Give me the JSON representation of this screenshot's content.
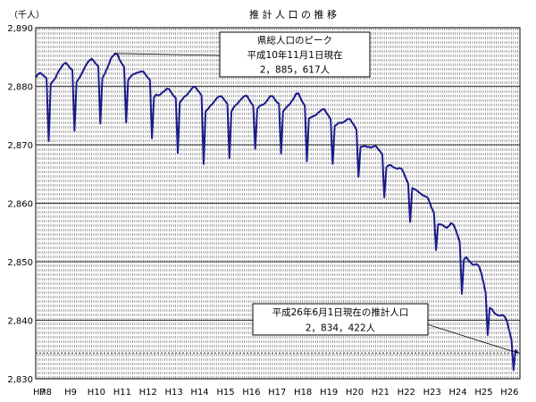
{
  "chart_data": {
    "type": "line",
    "title": "推 計 人 口 の 推 移",
    "unit_label": "（千人）",
    "xlabel": "",
    "ylabel": "",
    "ylim": [
      2830,
      2890
    ],
    "yticks": [
      2830,
      2840,
      2850,
      2860,
      2870,
      2880,
      2890
    ],
    "ytick_labels": [
      "2,830",
      "2,840",
      "2,850",
      "2,860",
      "2,870",
      "2,880",
      "2,890"
    ],
    "x_start_year": 7.75,
    "x_end_year": 26.5,
    "x_categories": [
      "H7",
      "H8",
      "H9",
      "H10",
      "H11",
      "H12",
      "H13",
      "H14",
      "H15",
      "H16",
      "H17",
      "H18",
      "H19",
      "H20",
      "H21",
      "H22",
      "H23",
      "H24",
      "H25",
      "H26"
    ],
    "grid": {
      "horizontal": true,
      "vertical_monthly": true,
      "vertical_style": "dashed"
    },
    "line_color": "#1a1a8c",
    "series": [
      {
        "values": [
          [
            7.75,
            2881.5
          ],
          [
            7.83,
            2882.0
          ],
          [
            7.92,
            2882.3
          ],
          [
            8.0,
            2882.0
          ],
          [
            8.08,
            2881.7
          ],
          [
            8.17,
            2881.4
          ],
          [
            8.25,
            2870.6
          ],
          [
            8.33,
            2880.4
          ],
          [
            8.42,
            2880.9
          ],
          [
            8.5,
            2881.3
          ],
          [
            8.58,
            2882.1
          ],
          [
            8.67,
            2882.8
          ],
          [
            8.75,
            2883.3
          ],
          [
            8.83,
            2883.8
          ],
          [
            8.92,
            2884.0
          ],
          [
            9.0,
            2883.6
          ],
          [
            9.08,
            2883.1
          ],
          [
            9.17,
            2882.8
          ],
          [
            9.25,
            2872.4
          ],
          [
            9.33,
            2880.7
          ],
          [
            9.42,
            2881.3
          ],
          [
            9.5,
            2881.9
          ],
          [
            9.58,
            2882.6
          ],
          [
            9.67,
            2883.4
          ],
          [
            9.75,
            2884.0
          ],
          [
            9.83,
            2884.4
          ],
          [
            9.92,
            2884.7
          ],
          [
            10.0,
            2884.3
          ],
          [
            10.08,
            2883.8
          ],
          [
            10.17,
            2883.4
          ],
          [
            10.25,
            2873.6
          ],
          [
            10.33,
            2881.4
          ],
          [
            10.42,
            2882.1
          ],
          [
            10.5,
            2882.9
          ],
          [
            10.58,
            2883.7
          ],
          [
            10.67,
            2884.8
          ],
          [
            10.75,
            2885.2
          ],
          [
            10.83,
            2885.6
          ],
          [
            10.92,
            2885.4
          ],
          [
            11.0,
            2884.5
          ],
          [
            11.08,
            2883.9
          ],
          [
            11.17,
            2883.3
          ],
          [
            11.25,
            2873.8
          ],
          [
            11.33,
            2881.1
          ],
          [
            11.42,
            2881.6
          ],
          [
            11.5,
            2882.0
          ],
          [
            11.58,
            2882.1
          ],
          [
            11.67,
            2882.3
          ],
          [
            11.75,
            2882.4
          ],
          [
            11.83,
            2882.5
          ],
          [
            11.92,
            2882.5
          ],
          [
            12.0,
            2882.0
          ],
          [
            12.08,
            2881.5
          ],
          [
            12.17,
            2881.1
          ],
          [
            12.25,
            2871.1
          ],
          [
            12.33,
            2878.1
          ],
          [
            12.42,
            2878.6
          ],
          [
            12.5,
            2878.4
          ],
          [
            12.58,
            2878.6
          ],
          [
            12.67,
            2879.0
          ],
          [
            12.75,
            2879.2
          ],
          [
            12.83,
            2879.6
          ],
          [
            12.92,
            2879.5
          ],
          [
            13.0,
            2878.9
          ],
          [
            13.08,
            2878.4
          ],
          [
            13.17,
            2878.0
          ],
          [
            13.25,
            2868.6
          ],
          [
            13.33,
            2877.2
          ],
          [
            13.42,
            2877.7
          ],
          [
            13.5,
            2878.2
          ],
          [
            13.58,
            2878.4
          ],
          [
            13.67,
            2878.9
          ],
          [
            13.75,
            2879.3
          ],
          [
            13.83,
            2879.8
          ],
          [
            13.92,
            2879.9
          ],
          [
            14.0,
            2879.4
          ],
          [
            14.08,
            2879.0
          ],
          [
            14.17,
            2878.4
          ],
          [
            14.25,
            2866.7
          ],
          [
            14.33,
            2875.7
          ],
          [
            14.42,
            2876.1
          ],
          [
            14.5,
            2876.6
          ],
          [
            14.58,
            2876.9
          ],
          [
            14.67,
            2877.4
          ],
          [
            14.75,
            2877.9
          ],
          [
            14.83,
            2878.2
          ],
          [
            14.92,
            2878.3
          ],
          [
            15.0,
            2878.0
          ],
          [
            15.08,
            2877.5
          ],
          [
            15.17,
            2877.0
          ],
          [
            15.25,
            2867.7
          ],
          [
            15.33,
            2875.7
          ],
          [
            15.42,
            2876.4
          ],
          [
            15.5,
            2876.8
          ],
          [
            15.58,
            2877.1
          ],
          [
            15.67,
            2877.6
          ],
          [
            15.75,
            2878.0
          ],
          [
            15.83,
            2878.3
          ],
          [
            15.92,
            2878.4
          ],
          [
            16.0,
            2877.8
          ],
          [
            16.08,
            2877.2
          ],
          [
            16.17,
            2876.7
          ],
          [
            16.25,
            2869.3
          ],
          [
            16.33,
            2876.1
          ],
          [
            16.42,
            2876.6
          ],
          [
            16.5,
            2876.8
          ],
          [
            16.58,
            2876.9
          ],
          [
            16.67,
            2877.3
          ],
          [
            16.75,
            2877.8
          ],
          [
            16.83,
            2878.3
          ],
          [
            16.92,
            2878.3
          ],
          [
            17.0,
            2877.8
          ],
          [
            17.08,
            2877.3
          ],
          [
            17.17,
            2877.0
          ],
          [
            17.25,
            2868.5
          ],
          [
            17.33,
            2875.7
          ],
          [
            17.42,
            2876.2
          ],
          [
            17.5,
            2876.6
          ],
          [
            17.58,
            2876.9
          ],
          [
            17.67,
            2877.5
          ],
          [
            17.75,
            2878.0
          ],
          [
            17.83,
            2878.7
          ],
          [
            17.92,
            2878.8
          ],
          [
            18.0,
            2878.0
          ],
          [
            18.08,
            2877.3
          ],
          [
            18.17,
            2876.7
          ],
          [
            18.25,
            2867.2
          ],
          [
            18.33,
            2874.5
          ],
          [
            18.42,
            2874.7
          ],
          [
            18.5,
            2874.9
          ],
          [
            18.58,
            2875.0
          ],
          [
            18.67,
            2875.4
          ],
          [
            18.75,
            2875.7
          ],
          [
            18.83,
            2876.0
          ],
          [
            18.92,
            2876.1
          ],
          [
            19.0,
            2875.5
          ],
          [
            19.08,
            2875.0
          ],
          [
            19.17,
            2874.4
          ],
          [
            19.25,
            2866.7
          ],
          [
            19.33,
            2873.2
          ],
          [
            19.42,
            2873.5
          ],
          [
            19.5,
            2873.8
          ],
          [
            19.58,
            2873.7
          ],
          [
            19.67,
            2873.9
          ],
          [
            19.75,
            2874.1
          ],
          [
            19.83,
            2874.4
          ],
          [
            19.92,
            2874.4
          ],
          [
            20.0,
            2873.8
          ],
          [
            20.08,
            2873.3
          ],
          [
            20.17,
            2872.6
          ],
          [
            20.25,
            2864.5
          ],
          [
            20.33,
            2869.6
          ],
          [
            20.42,
            2869.7
          ],
          [
            20.5,
            2869.8
          ],
          [
            20.58,
            2869.6
          ],
          [
            20.67,
            2869.6
          ],
          [
            20.75,
            2869.5
          ],
          [
            20.83,
            2869.7
          ],
          [
            20.92,
            2869.8
          ],
          [
            21.0,
            2869.3
          ],
          [
            21.08,
            2868.9
          ],
          [
            21.17,
            2868.4
          ],
          [
            21.25,
            2861.0
          ],
          [
            21.33,
            2866.2
          ],
          [
            21.42,
            2866.5
          ],
          [
            21.5,
            2866.5
          ],
          [
            21.58,
            2866.2
          ],
          [
            21.67,
            2866.0
          ],
          [
            21.75,
            2865.9
          ],
          [
            21.83,
            2866.0
          ],
          [
            21.92,
            2865.9
          ],
          [
            22.0,
            2865.2
          ],
          [
            22.08,
            2864.3
          ],
          [
            22.17,
            2863.4
          ],
          [
            22.25,
            2856.8
          ],
          [
            22.33,
            2862.6
          ],
          [
            22.42,
            2862.4
          ],
          [
            22.5,
            2862.2
          ],
          [
            22.58,
            2861.9
          ],
          [
            22.67,
            2861.6
          ],
          [
            22.75,
            2861.3
          ],
          [
            22.83,
            2861.2
          ],
          [
            22.92,
            2861.0
          ],
          [
            23.0,
            2860.2
          ],
          [
            23.08,
            2859.2
          ],
          [
            23.17,
            2858.4
          ],
          [
            23.25,
            2852.0
          ],
          [
            23.33,
            2856.4
          ],
          [
            23.42,
            2856.4
          ],
          [
            23.5,
            2856.3
          ],
          [
            23.58,
            2856.0
          ],
          [
            23.67,
            2855.8
          ],
          [
            23.75,
            2856.1
          ],
          [
            23.83,
            2856.6
          ],
          [
            23.92,
            2856.4
          ],
          [
            24.0,
            2855.6
          ],
          [
            24.08,
            2854.6
          ],
          [
            24.17,
            2853.4
          ],
          [
            24.25,
            2844.5
          ],
          [
            24.33,
            2850.4
          ],
          [
            24.42,
            2850.8
          ],
          [
            24.5,
            2850.3
          ],
          [
            24.58,
            2849.9
          ],
          [
            24.67,
            2849.5
          ],
          [
            24.75,
            2849.5
          ],
          [
            24.83,
            2849.6
          ],
          [
            24.92,
            2849.2
          ],
          [
            25.0,
            2848.1
          ],
          [
            25.08,
            2846.6
          ],
          [
            25.17,
            2844.7
          ],
          [
            25.25,
            2837.5
          ],
          [
            25.33,
            2842.1
          ],
          [
            25.42,
            2841.9
          ],
          [
            25.5,
            2841.3
          ],
          [
            25.58,
            2841.0
          ],
          [
            25.67,
            2840.8
          ],
          [
            25.75,
            2840.8
          ],
          [
            25.83,
            2840.9
          ],
          [
            25.92,
            2840.6
          ],
          [
            26.0,
            2839.8
          ],
          [
            26.08,
            2838.3
          ],
          [
            26.17,
            2836.7
          ],
          [
            26.25,
            2831.5
          ],
          [
            26.33,
            2834.9
          ],
          [
            26.42,
            2834.4
          ]
        ]
      }
    ],
    "annotations": [
      {
        "lines": [
          "県総人口のピーク",
          "平成10年11月1日現在",
          "2，885，617人"
        ],
        "x": 10.83,
        "y": 2885.6
      },
      {
        "lines": [
          "平成26年6月1日現在の推計人口",
          "2，834，422人"
        ],
        "x": 26.42,
        "y": 2834.4
      }
    ],
    "reference_line": {
      "y": 2834.4,
      "style": "dashed"
    }
  }
}
